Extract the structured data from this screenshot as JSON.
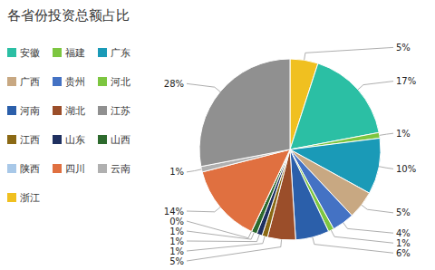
{
  "chart_data": {
    "type": "pie",
    "title": "各省份投资总额占比",
    "categories": [
      "浙江",
      "安徽",
      "福建",
      "广东",
      "广西",
      "贵州",
      "河北",
      "河南",
      "湖北",
      "江西",
      "山东",
      "山西",
      "陕西",
      "四川",
      "云南",
      "江苏"
    ],
    "values": [
      5,
      17,
      1,
      10,
      5,
      4,
      1,
      6,
      5,
      1,
      1,
      1,
      0,
      14,
      1,
      28
    ],
    "value_labels": [
      "5%",
      "17%",
      "1%",
      "10%",
      "5%",
      "4%",
      "1%",
      "6%",
      "5%",
      "1%",
      "1%",
      "1%",
      "0%",
      "14%",
      "1%",
      "28%"
    ],
    "colors": [
      "#f0c020",
      "#2bbfa4",
      "#7dc640",
      "#1a9ab7",
      "#c8a882",
      "#4472c4",
      "#7dc640",
      "#2b5faa",
      "#9b4e2a",
      "#8b6914",
      "#1f3060",
      "#2d6a2d",
      "#a8c8e8",
      "#e07040",
      "#b0b0b0",
      "#909090"
    ],
    "legend_order": [
      "安徽",
      "福建",
      "广东",
      "广西",
      "贵州",
      "河北",
      "河南",
      "湖北",
      "江苏",
      "江西",
      "山东",
      "山西",
      "陕西",
      "四川",
      "云南",
      "浙江"
    ],
    "legend": "left",
    "data_labels": true
  }
}
